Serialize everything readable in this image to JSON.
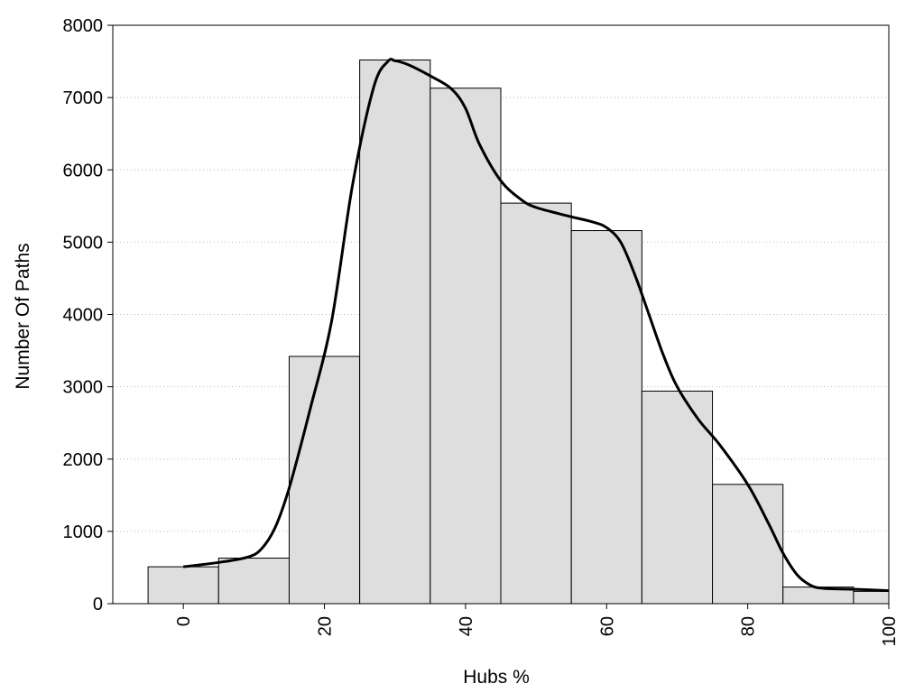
{
  "chart_data": {
    "type": "bar",
    "title": "",
    "xlabel": "Hubs %",
    "ylabel": "Number Of Paths",
    "xlim": [
      -10,
      100
    ],
    "ylim": [
      0,
      8000
    ],
    "x_ticks": [
      0,
      20,
      40,
      60,
      80,
      100
    ],
    "y_ticks": [
      0,
      1000,
      2000,
      3000,
      4000,
      5000,
      6000,
      7000,
      8000
    ],
    "grid": "horizontal dotted",
    "bin_width": 10,
    "bins": [
      {
        "x": 0,
        "value": 510
      },
      {
        "x": 10,
        "value": 630
      },
      {
        "x": 20,
        "value": 3420
      },
      {
        "x": 30,
        "value": 7520
      },
      {
        "x": 40,
        "value": 7130
      },
      {
        "x": 50,
        "value": 5540
      },
      {
        "x": 60,
        "value": 5160
      },
      {
        "x": 70,
        "value": 2940
      },
      {
        "x": 80,
        "value": 1650
      },
      {
        "x": 90,
        "value": 230
      },
      {
        "x": 100,
        "value": 170
      }
    ],
    "density_curve": {
      "x": [
        0,
        5,
        9,
        11,
        13,
        15,
        18,
        21,
        24,
        27,
        29,
        30,
        32,
        35,
        38,
        40,
        42,
        45,
        48,
        50,
        53,
        55,
        58,
        60,
        62,
        64,
        66,
        68,
        70,
        73,
        76,
        80,
        83,
        85,
        87,
        89,
        91,
        95,
        100
      ],
      "y": [
        510,
        570,
        640,
        750,
        1050,
        1600,
        2700,
        3900,
        5800,
        7150,
        7500,
        7510,
        7450,
        7300,
        7120,
        6850,
        6350,
        5850,
        5580,
        5480,
        5400,
        5350,
        5280,
        5200,
        5000,
        4550,
        4000,
        3450,
        3000,
        2550,
        2200,
        1650,
        1100,
        700,
        400,
        250,
        210,
        200,
        180
      ]
    },
    "bar_color": "#dedede",
    "bar_stroke": "#000000",
    "curve_color": "#000000"
  }
}
